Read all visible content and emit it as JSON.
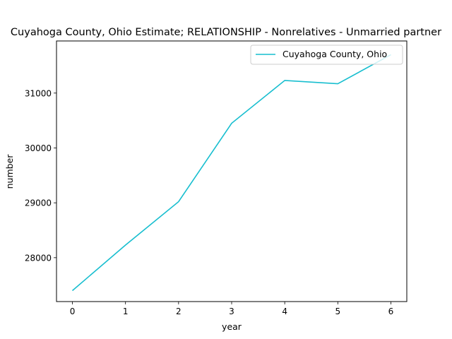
{
  "chart_data": {
    "type": "line",
    "title": "Cuyahoga County, Ohio Estimate; RELATIONSHIP - Nonrelatives - Unmarried partner",
    "xlabel": "year",
    "ylabel": "number",
    "x": [
      0,
      1,
      2,
      3,
      4,
      5,
      6
    ],
    "xticks": [
      "0",
      "1",
      "2",
      "3",
      "4",
      "5",
      "6"
    ],
    "yticks": [
      "28000",
      "29000",
      "30000",
      "31000"
    ],
    "xlim": [
      -0.3,
      6.3
    ],
    "ylim": [
      27200,
      31950
    ],
    "grid": false,
    "legend_position": "top-right",
    "series": [
      {
        "name": "Cuyahoga County, Ohio",
        "color": "#17becf",
        "values": [
          27400,
          28230,
          29020,
          30450,
          31230,
          31170,
          31700
        ]
      }
    ]
  }
}
